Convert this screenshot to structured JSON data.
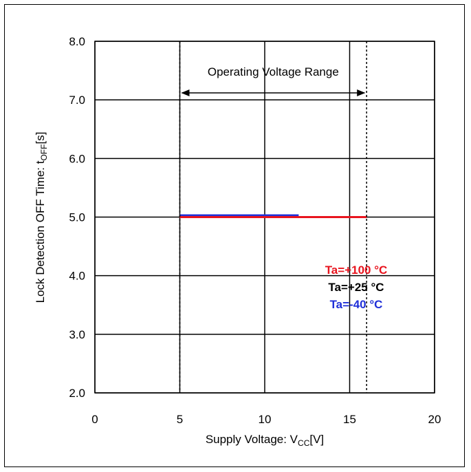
{
  "chart_data": {
    "type": "line",
    "title": "",
    "xlabel": {
      "main": "Supply Voltage: V",
      "sub": "CC",
      "unit": "[V]"
    },
    "ylabel": {
      "main": "Lock Detection OFF Time: t",
      "sub": "OFF",
      "unit": "[s]"
    },
    "xlim": [
      0,
      20
    ],
    "ylim": [
      2.0,
      8.0
    ],
    "x_ticks": [
      0,
      5,
      10,
      15,
      20
    ],
    "x_tick_labels": [
      "0",
      "5",
      "10",
      "15",
      "20"
    ],
    "y_ticks": [
      2.0,
      3.0,
      4.0,
      5.0,
      6.0,
      7.0,
      8.0
    ],
    "y_tick_labels": [
      "2.0",
      "3.0",
      "4.0",
      "5.0",
      "6.0",
      "7.0",
      "8.0"
    ],
    "grid": true,
    "operating_range": {
      "label": "Operating Voltage Range",
      "x_min": 5,
      "x_max": 16
    },
    "legend_position": "right-middle",
    "series": [
      {
        "name": "Ta=+100 °C",
        "color": "#e8141e",
        "x": [
          5,
          16
        ],
        "y": [
          5.0,
          5.0
        ]
      },
      {
        "name": "Ta=+25 °C",
        "color": "#000000",
        "x": [
          5,
          16
        ],
        "y": [
          5.0,
          5.0
        ]
      },
      {
        "name": "Ta=-40 °C",
        "color": "#1f2fd8",
        "x": [
          5,
          12
        ],
        "y": [
          5.03,
          5.03
        ]
      }
    ]
  }
}
